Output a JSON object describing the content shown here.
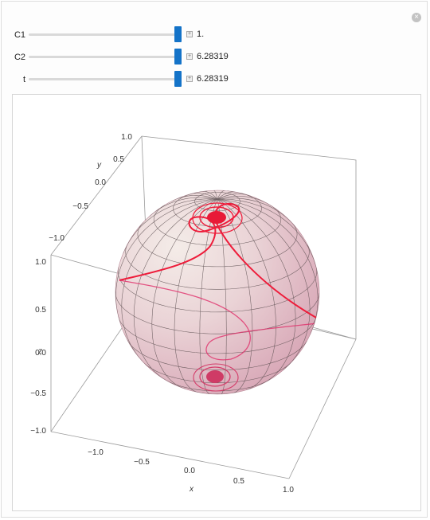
{
  "controls": [
    {
      "label": "C1",
      "value": "1."
    },
    {
      "label": "C2",
      "value": "6.28319"
    },
    {
      "label": "t",
      "value": "6.28319"
    }
  ],
  "plot": {
    "y_axis": {
      "label": "y",
      "ticks": [
        "1.0",
        "0.5",
        "0.0",
        "−0.5",
        "−1.0"
      ]
    },
    "z_axis": {
      "label": "z",
      "ticks": [
        "1.0",
        "0.5",
        "0.0",
        "−0.5",
        "−1.0"
      ]
    },
    "x_axis": {
      "label": "x",
      "ticks": [
        "−1.0",
        "−0.5",
        "0.0",
        "0.5",
        "1.0"
      ]
    }
  },
  "colors": {
    "curve": "#ee1c3a",
    "slider_thumb": "#1473c8"
  }
}
